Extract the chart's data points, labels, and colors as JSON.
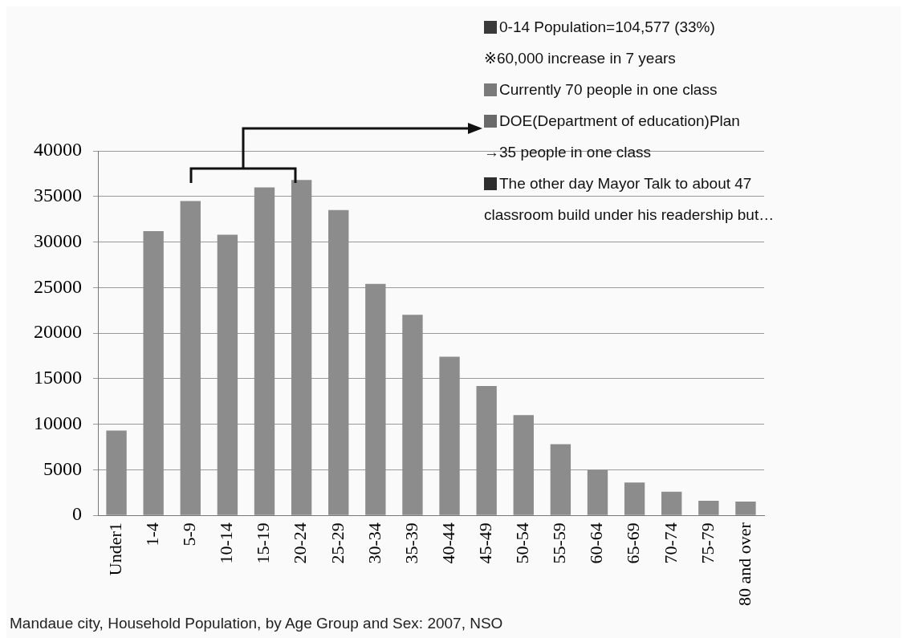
{
  "chart_data": {
    "type": "bar",
    "categories": [
      "Under1",
      "1-4",
      "5-9",
      "10-14",
      "15-19",
      "20-24",
      "25-29",
      "30-34",
      "35-39",
      "40-44",
      "45-49",
      "50-54",
      "55-59",
      "60-64",
      "65-69",
      "70-74",
      "75-79",
      "80 and over"
    ],
    "values": [
      9300,
      31200,
      34500,
      30800,
      36000,
      36800,
      33500,
      25400,
      22000,
      17400,
      14200,
      11000,
      7800,
      5000,
      3600,
      2600,
      1600,
      1500
    ],
    "color": "#8c8c8c",
    "ylim": [
      0,
      40000
    ],
    "yticks": [
      0,
      5000,
      10000,
      15000,
      20000,
      25000,
      30000,
      35000,
      40000
    ],
    "grid": "y",
    "annotations": [
      "0-14  Population=104,577  (33%)",
      "※60,000 increase in 7 years",
      "Currently 70 people in one class",
      "DOE(Department of education)Plan",
      "→35 people in one class",
      "The other day Mayor Talk to about 47",
      "classroom build under his readership but…",
      "Mandaue city, Household Population, by Age Group and Sex: 2007, NSO"
    ]
  }
}
